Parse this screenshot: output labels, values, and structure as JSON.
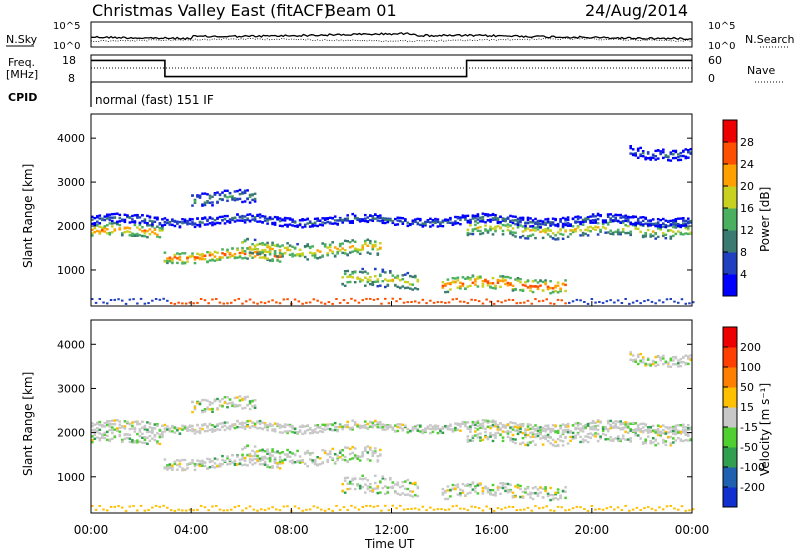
{
  "header": {
    "title": "Christmas Valley East (fitACF)",
    "beam": "Beam 01",
    "date": "24/Aug/2014"
  },
  "noise_panel": {
    "left_label": "N.Sky",
    "right_label": "N.Search",
    "left_ticks": [
      "10^5",
      "10^0"
    ],
    "right_ticks": [
      "10^5",
      "10^0"
    ]
  },
  "freq_panel": {
    "left_label_line1": "Freq.",
    "left_label_line2": "[MHz]",
    "right_label": "Nave",
    "left_ticks": [
      "18",
      "8"
    ],
    "right_ticks": [
      "60",
      "0"
    ],
    "freq_steps": [
      {
        "from_hour": 0,
        "to_hour": 2.95,
        "mhz": 16
      },
      {
        "from_hour": 2.95,
        "to_hour": 15.0,
        "mhz": 10
      },
      {
        "from_hour": 15.0,
        "to_hour": 24,
        "mhz": 16
      }
    ]
  },
  "cpid": {
    "label": "CPID",
    "value": "normal (fast) 151 IF"
  },
  "power_panel": {
    "ylabel": "Slant Range [km]",
    "yticks": [
      "4000",
      "3000",
      "2000",
      "1000"
    ],
    "colorbar_label": "Power [dB]",
    "colorbar_ticks": [
      "28",
      "24",
      "20",
      "16",
      "12",
      "8",
      "4"
    ],
    "colors": [
      "#0000ff",
      "#2040c0",
      "#3a7a70",
      "#4ab060",
      "#c8d020",
      "#ffa000",
      "#ff5000",
      "#ee0000"
    ]
  },
  "velocity_panel": {
    "ylabel": "Slant Range [km]",
    "yticks": [
      "4000",
      "3000",
      "2000",
      "1000"
    ],
    "colorbar_label": "Velocity [m s⁻¹]",
    "colorbar_ticks": [
      "200",
      "100",
      "50",
      "15",
      "-15",
      "-50",
      "-100",
      "-200"
    ],
    "colors": [
      "#1030d0",
      "#2060b0",
      "#30a050",
      "#50d030",
      "#c8c8c8",
      "#ffc000",
      "#ff8000",
      "#ff4000",
      "#ee0000"
    ]
  },
  "xaxis": {
    "label": "Time UT",
    "ticks": [
      "00:00",
      "04:00",
      "08:00",
      "12:00",
      "16:00",
      "20:00",
      "00:00"
    ]
  },
  "chart_data": {
    "type": "heatmap",
    "x_range_hours": [
      0,
      24
    ],
    "y_range_km": [
      180,
      4550
    ],
    "bands": [
      {
        "panel": "power",
        "x0": 0,
        "x1": 2.9,
        "y": 1900,
        "thick": 300,
        "value_db": 24
      },
      {
        "panel": "power",
        "x0": 2.9,
        "x1": 7.5,
        "y": 1350,
        "thick": 250,
        "value_db": 26
      },
      {
        "panel": "power",
        "x0": 6.0,
        "x1": 11.5,
        "y": 1500,
        "thick": 350,
        "value_db": 22
      },
      {
        "panel": "power",
        "x0": 10.0,
        "x1": 13.0,
        "y": 800,
        "thick": 400,
        "value_db": 20
      },
      {
        "panel": "power",
        "x0": 14.0,
        "x1": 19.0,
        "y": 700,
        "thick": 300,
        "value_db": 26
      },
      {
        "panel": "power",
        "x0": 15.0,
        "x1": 24,
        "y": 1950,
        "thick": 350,
        "value_db": 20
      },
      {
        "panel": "power",
        "x0": 0,
        "x1": 24,
        "y": 2150,
        "thick": 200,
        "value_db": 10
      },
      {
        "panel": "power",
        "x0": 21.5,
        "x1": 24,
        "y": 3700,
        "thick": 250,
        "value_db": 10
      },
      {
        "panel": "power",
        "x0": 4.0,
        "x1": 6.5,
        "y": 2650,
        "thick": 300,
        "value_db": 14
      }
    ]
  }
}
